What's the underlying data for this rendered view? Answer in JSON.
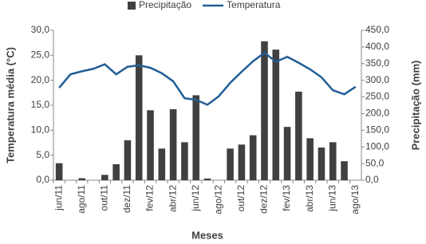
{
  "chart_data": {
    "type": "bar",
    "categories": [
      "jun/11",
      null,
      "ago/11",
      null,
      "out/11",
      null,
      "dez/11",
      null,
      "fev/12",
      null,
      "abr/12",
      null,
      "jun/12",
      null,
      "ago/12",
      null,
      "out/12",
      null,
      "dez/12",
      null,
      "fev/13",
      null,
      "abr/13",
      null,
      "jun/13",
      null,
      "ago/13"
    ],
    "x_label": "Meses",
    "y_label": "Temperatura média (°C)",
    "y2_label": "Precipitação (mm)",
    "series": [
      {
        "name": "Precipitação",
        "type": "bar",
        "axis": "y2",
        "color": "#404040",
        "values": [
          51,
          0,
          6,
          0,
          16,
          48,
          120,
          375,
          210,
          95,
          213,
          114,
          255,
          5,
          0,
          95,
          107,
          135,
          417,
          392,
          160,
          266,
          126,
          98,
          114,
          57,
          0
        ]
      },
      {
        "name": "Temperatura",
        "type": "line",
        "color": "#215d96",
        "values": [
          18.5,
          21.2,
          21.8,
          22.3,
          23.2,
          21.2,
          22.7,
          23.0,
          22.5,
          21.4,
          19.8,
          16.4,
          16.1,
          15.1,
          16.8,
          19.5,
          21.7,
          23.8,
          25.5,
          23.7,
          24.7,
          23.5,
          22.2,
          20.6,
          18.0,
          17.2,
          18.7
        ]
      }
    ],
    "ylim": [
      0,
      30
    ],
    "yticks": [
      {
        "value": 0,
        "label": "0,0"
      },
      {
        "value": 5,
        "label": "5,0"
      },
      {
        "value": 10,
        "label": "10,0"
      },
      {
        "value": 15,
        "label": "15,0"
      },
      {
        "value": 20,
        "label": "20,0"
      },
      {
        "value": 25,
        "label": "25,0"
      },
      {
        "value": 30,
        "label": "30,0"
      }
    ],
    "y2lim": [
      0,
      450
    ],
    "y2ticks": [
      {
        "value": 0,
        "label": "0,0"
      },
      {
        "value": 50,
        "label": "50,0"
      },
      {
        "value": 100,
        "label": "100,0"
      },
      {
        "value": 150,
        "label": "150,0"
      },
      {
        "value": 200,
        "label": "200,0"
      },
      {
        "value": 250,
        "label": "250,0"
      },
      {
        "value": 300,
        "label": "300,0"
      },
      {
        "value": 350,
        "label": "350,0"
      },
      {
        "value": 400,
        "label": "400,0"
      },
      {
        "value": 450,
        "label": "450,0"
      }
    ],
    "grid": false
  }
}
